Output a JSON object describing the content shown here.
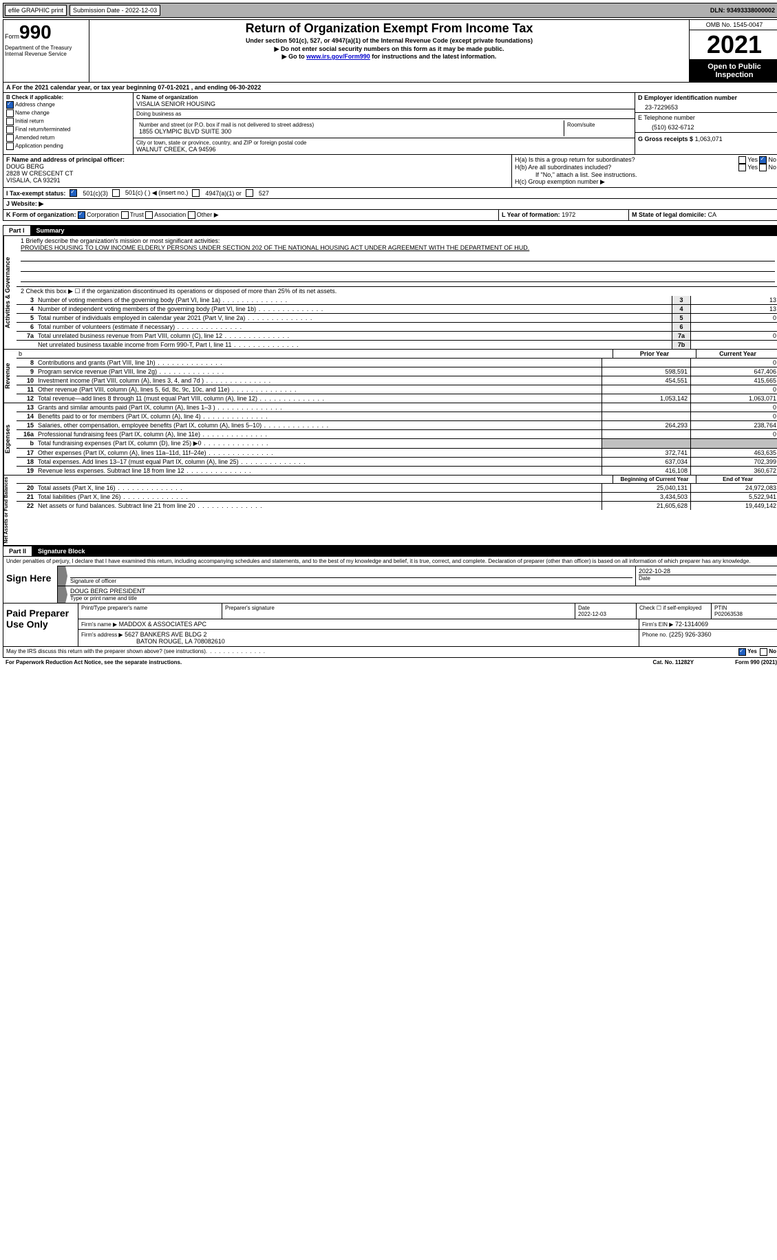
{
  "colors": {
    "link": "#0000cc",
    "black": "#000000",
    "white": "#ffffff",
    "gray_bg": "#b0b0b0",
    "shade": "#c0c0c0",
    "box_shade": "#e8e8e8",
    "check_blue": "#2060c0"
  },
  "top_bar": {
    "efile": "efile GRAPHIC print",
    "submission_label": "Submission Date - 2022-12-03",
    "dln_label": "DLN: 93493338000002"
  },
  "header": {
    "form_word": "Form",
    "form_no": "990",
    "dept": "Department of the Treasury\nInternal Revenue Service",
    "title": "Return of Organization Exempt From Income Tax",
    "sub": "Under section 501(c), 527, or 4947(a)(1) of the Internal Revenue Code (except private foundations)",
    "instr1": "▶ Do not enter social security numbers on this form as it may be made public.",
    "instr2_pre": "▶ Go to ",
    "instr2_link": "www.irs.gov/Form990",
    "instr2_post": " for instructions and the latest information.",
    "omb": "OMB No. 1545-0047",
    "year": "2021",
    "open": "Open to Public Inspection"
  },
  "line_a": "A For the 2021 calendar year, or tax year beginning 07-01-2021   , and ending 06-30-2022",
  "box_b": {
    "label": "B Check if applicable:",
    "items": [
      {
        "label": "Address change",
        "checked": true
      },
      {
        "label": "Name change",
        "checked": false
      },
      {
        "label": "Initial return",
        "checked": false
      },
      {
        "label": "Final return/terminated",
        "checked": false
      },
      {
        "label": "Amended return",
        "checked": false
      },
      {
        "label": "Application pending",
        "checked": false
      }
    ]
  },
  "box_c": {
    "label": "C Name of organization",
    "name": "VISALIA SENIOR HOUSING",
    "dba_label": "Doing business as",
    "dba": "",
    "addr_label": "Number and street (or P.O. box if mail is not delivered to street address)",
    "addr": "1855 OLYMPIC BLVD SUITE 300",
    "room_label": "Room/suite",
    "room": "",
    "city_label": "City or town, state or province, country, and ZIP or foreign postal code",
    "city": "WALNUT CREEK, CA   94596"
  },
  "box_d": {
    "label": "D Employer identification number",
    "value": "23-7229653"
  },
  "box_e": {
    "label": "E Telephone number",
    "value": "(510) 632-6712"
  },
  "box_g": {
    "label": "G Gross receipts $",
    "value": "1,063,071"
  },
  "box_f": {
    "label": "F Name and address of principal officer:",
    "name": "DOUG BERG",
    "addr1": "2828 W CRESCENT CT",
    "addr2": "VISALIA, CA   93291"
  },
  "box_h": {
    "a_label": "H(a)  Is this a group return for subordinates?",
    "a_yes": "Yes",
    "a_no": "No",
    "a_no_checked": true,
    "b_label": "H(b)  Are all subordinates included?",
    "b_yes": "Yes",
    "b_no": "No",
    "b_note": "If \"No,\" attach a list. See instructions.",
    "c_label": "H(c)  Group exemption number ▶"
  },
  "line_i": {
    "label": "I   Tax-exempt status:",
    "opt1": "501(c)(3)",
    "opt1_checked": true,
    "opt2": "501(c) (  ) ◀ (insert no.)",
    "opt3": "4947(a)(1) or",
    "opt4": "527"
  },
  "line_j": {
    "label": "J   Website: ▶",
    "value": ""
  },
  "line_k": {
    "label": "K Form of organization:",
    "opt1": "Corporation",
    "opt1_checked": true,
    "opt2": "Trust",
    "opt3": "Association",
    "opt4": "Other ▶"
  },
  "line_l": {
    "label": "L Year of formation:",
    "value": "1972"
  },
  "line_m": {
    "label": "M State of legal domicile:",
    "value": "CA"
  },
  "part1": {
    "num": "Part I",
    "title": "Summary",
    "side_labels": [
      "Activities & Governance",
      "Revenue",
      "Expenses",
      "Net Assets or Fund Balances"
    ],
    "line1_label": "1   Briefly describe the organization's mission or most significant activities:",
    "line1_text": "PROVIDES HOUSING TO LOW INCOME ELDERLY PERSONS UNDER SECTION 202 OF THE NATIONAL HOUSING ACT UNDER AGREEMENT WITH THE DEPARTMENT OF HUD.",
    "line2": "2    Check this box ▶ ☐  if the organization discontinued its operations or disposed of more than 25% of its net assets.",
    "gov_lines": [
      {
        "n": "3",
        "desc": "Number of voting members of the governing body (Part VI, line 1a)",
        "box": "3",
        "val": "13"
      },
      {
        "n": "4",
        "desc": "Number of independent voting members of the governing body (Part VI, line 1b)",
        "box": "4",
        "val": "13"
      },
      {
        "n": "5",
        "desc": "Total number of individuals employed in calendar year 2021 (Part V, line 2a)",
        "box": "5",
        "val": "0"
      },
      {
        "n": "6",
        "desc": "Total number of volunteers (estimate if necessary)",
        "box": "6",
        "val": ""
      },
      {
        "n": "7a",
        "desc": "Total unrelated business revenue from Part VIII, column (C), line 12",
        "box": "7a",
        "val": "0"
      },
      {
        "n": "",
        "desc": "Net unrelated business taxable income from Form 990-T, Part I, line 11",
        "box": "7b",
        "val": ""
      }
    ],
    "rev_header_b": "b",
    "prior_year": "Prior Year",
    "current_year": "Current Year",
    "rev_lines": [
      {
        "n": "8",
        "desc": "Contributions and grants (Part VIII, line 1h)",
        "py": "",
        "cy": "0"
      },
      {
        "n": "9",
        "desc": "Program service revenue (Part VIII, line 2g)",
        "py": "598,591",
        "cy": "647,406"
      },
      {
        "n": "10",
        "desc": "Investment income (Part VIII, column (A), lines 3, 4, and 7d )",
        "py": "454,551",
        "cy": "415,665"
      },
      {
        "n": "11",
        "desc": "Other revenue (Part VIII, column (A), lines 5, 6d, 8c, 9c, 10c, and 11e)",
        "py": "",
        "cy": "0"
      },
      {
        "n": "12",
        "desc": "Total revenue—add lines 8 through 11 (must equal Part VIII, column (A), line 12)",
        "py": "1,053,142",
        "cy": "1,063,071"
      }
    ],
    "exp_lines": [
      {
        "n": "13",
        "desc": "Grants and similar amounts paid (Part IX, column (A), lines 1–3 )",
        "py": "",
        "cy": "0"
      },
      {
        "n": "14",
        "desc": "Benefits paid to or for members (Part IX, column (A), line 4)",
        "py": "",
        "cy": "0"
      },
      {
        "n": "15",
        "desc": "Salaries, other compensation, employee benefits (Part IX, column (A), lines 5–10)",
        "py": "264,293",
        "cy": "238,764"
      },
      {
        "n": "16a",
        "desc": "Professional fundraising fees (Part IX, column (A), line 11e)",
        "py": "",
        "cy": "0"
      },
      {
        "n": "b",
        "desc": "Total fundraising expenses (Part IX, column (D), line 25) ▶0",
        "py": "shade",
        "cy": "shade"
      },
      {
        "n": "17",
        "desc": "Other expenses (Part IX, column (A), lines 11a–11d, 11f–24e)",
        "py": "372,741",
        "cy": "463,635"
      },
      {
        "n": "18",
        "desc": "Total expenses. Add lines 13–17 (must equal Part IX, column (A), line 25)",
        "py": "637,034",
        "cy": "702,399"
      },
      {
        "n": "19",
        "desc": "Revenue less expenses. Subtract line 18 from line 12",
        "py": "416,108",
        "cy": "360,672"
      }
    ],
    "na_header_py": "Beginning of Current Year",
    "na_header_cy": "End of Year",
    "na_lines": [
      {
        "n": "20",
        "desc": "Total assets (Part X, line 16)",
        "py": "25,040,131",
        "cy": "24,972,083"
      },
      {
        "n": "21",
        "desc": "Total liabilities (Part X, line 26)",
        "py": "3,434,503",
        "cy": "5,522,941"
      },
      {
        "n": "22",
        "desc": "Net assets or fund balances. Subtract line 21 from line 20",
        "py": "21,605,628",
        "cy": "19,449,142"
      }
    ]
  },
  "part2": {
    "num": "Part II",
    "title": "Signature Block",
    "decl": "Under penalties of perjury, I declare that I have examined this return, including accompanying schedules and statements, and to the best of my knowledge and belief, it is true, correct, and complete. Declaration of preparer (other than officer) is based on all information of which preparer has any knowledge.",
    "sign_here": "Sign Here",
    "sig_of_officer": "Signature of officer",
    "sig_date": "2022-10-28",
    "date_label": "Date",
    "officer_name": "DOUG BERG  PRESIDENT",
    "officer_sub": "Type or print name and title",
    "paid_label": "Paid Preparer Use Only",
    "prep_name_label": "Print/Type preparer's name",
    "prep_sig_label": "Preparer's signature",
    "prep_date_label": "Date",
    "prep_date": "2022-12-03",
    "prep_check_label": "Check ☐ if self-employed",
    "ptin_label": "PTIN",
    "ptin": "P02063538",
    "firm_name_label": "Firm's name    ▶",
    "firm_name": "MADDOX & ASSOCIATES APC",
    "firm_ein_label": "Firm's EIN ▶",
    "firm_ein": "72-1314069",
    "firm_addr_label": "Firm's address ▶",
    "firm_addr1": "5627 BANKERS AVE BLDG 2",
    "firm_addr2": "BATON ROUGE, LA   708082610",
    "firm_phone_label": "Phone no.",
    "firm_phone": "(225) 926-3360",
    "discuss": "May the IRS discuss this return with the preparer shown above? (see instructions)",
    "discuss_yes": "Yes",
    "discuss_yes_checked": true,
    "discuss_no": "No"
  },
  "footer": {
    "pra": "For Paperwork Reduction Act Notice, see the separate instructions.",
    "cat": "Cat. No. 11282Y",
    "form": "Form 990 (2021)"
  }
}
